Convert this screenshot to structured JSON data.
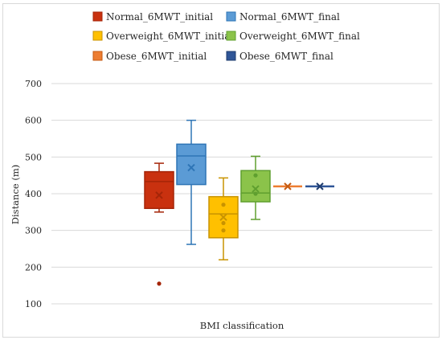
{
  "chart_data": {
    "type": "box",
    "xlabel": "BMI classification",
    "ylabel": "Distance (m)",
    "ylim": [
      100,
      700
    ],
    "yticks": [
      "100",
      "200",
      "300",
      "400",
      "500",
      "600",
      "700"
    ],
    "grid": "horizontal",
    "legend_position": "top",
    "series": [
      {
        "name": "Normal_6MWT_initial",
        "color": "#c9310f",
        "edge": "#a52508",
        "min": 350,
        "q1": 360,
        "median": 433,
        "q3": 460,
        "max": 483,
        "mean": 396,
        "points": [
          155
        ]
      },
      {
        "name": "Normal_6MWT_final",
        "color": "#5b9bd5",
        "edge": "#2e75b6",
        "min": 262,
        "q1": 425,
        "median": 503,
        "q3": 535,
        "max": 600,
        "mean": 471,
        "points": []
      },
      {
        "name": "Overweight_6MWT_initial",
        "color": "#ffc000",
        "edge": "#c89300",
        "min": 220,
        "q1": 280,
        "median": 345,
        "q3": 392,
        "max": 443,
        "mean": 336,
        "points": [
          370,
          320,
          300
        ]
      },
      {
        "name": "Overweight_6MWT_final",
        "color": "#8bc34a",
        "edge": "#5f9f2f",
        "min": 330,
        "q1": 378,
        "median": 402,
        "q3": 463,
        "max": 502,
        "mean": 413,
        "points": [
          450,
          400
        ]
      },
      {
        "name": "Obese_6MWT_initial",
        "color": "#ed7d31",
        "edge": "#c55a11",
        "min": 420,
        "q1": 420,
        "median": 420,
        "q3": 420,
        "max": 420,
        "mean": 420,
        "points": []
      },
      {
        "name": "Obese_6MWT_final",
        "color": "#2f5597",
        "edge": "#1f3c6e",
        "min": 420,
        "q1": 420,
        "median": 420,
        "q3": 420,
        "max": 420,
        "mean": 420,
        "points": []
      }
    ]
  }
}
